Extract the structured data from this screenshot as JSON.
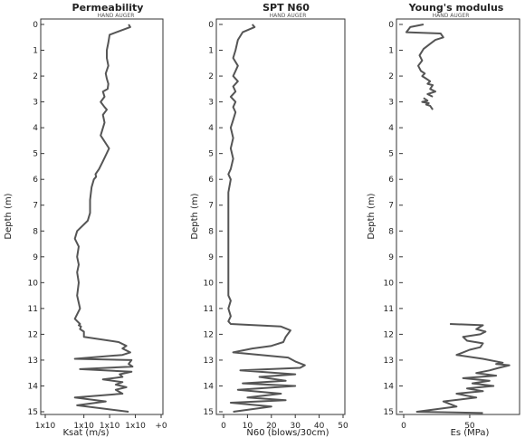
{
  "colors": {
    "trace": "#555555",
    "axis": "#333333"
  },
  "chart_data": [
    {
      "type": "line",
      "title": "Permeability",
      "annotation": "HAND AUGER",
      "xlabel": "Ksat (m/s)",
      "ylabel": "Depth (m)",
      "xscale": "log",
      "xlim": [
        1e-09,
        1
      ],
      "ylim": [
        15,
        0
      ],
      "x_ticks": [
        {
          "value": 1e-09,
          "label": "1x10"
        },
        {
          "value": 1e-06,
          "label": "1x10"
        },
        {
          "value": 0.0001,
          "label": "1x10"
        },
        {
          "value": 0.01,
          "label": "1x10"
        },
        {
          "value": 1,
          "label": "+0"
        }
      ],
      "y_ticks": [
        0,
        1,
        2,
        3,
        4,
        5,
        6,
        7,
        8,
        9,
        10,
        11,
        12,
        13,
        14,
        15
      ],
      "series": [
        {
          "x": [
            0.003,
            0.004,
            0.0001,
            8e-05,
            6e-05,
            6e-05,
            8e-05,
            5e-05,
            6e-05,
            8e-05,
            7e-05,
            3e-05,
            4e-05,
            2e-05,
            4e-05,
            6e-05,
            3e-05,
            4e-05,
            2e-05,
            9e-05,
            3e-05,
            1.5e-05,
            8e-06,
            9e-06,
            6e-06,
            4e-06,
            3e-06,
            3e-06,
            2e-06,
            3e-07,
            2e-07,
            4e-07,
            3e-07,
            4e-07,
            3e-07,
            4e-07,
            3e-07,
            5e-07,
            2e-07,
            5e-07,
            4e-07,
            6e-07,
            5e-07,
            1e-06,
            1e-06,
            0.0005,
            0.002,
            0.001,
            0.004,
            0.001,
            2e-07,
            0.005,
            0.003,
            0.006,
            5e-07,
            0.005,
            0.0006,
            0.001,
            3e-05,
            0.001,
            0.0003,
            0.002,
            0.0003,
            0.001,
            2e-07,
            5e-05,
            3e-07,
            0.003
          ],
          "depth": [
            0,
            0.1,
            0.4,
            0.7,
            1.0,
            1.3,
            1.6,
            1.9,
            2.1,
            2.3,
            2.5,
            2.6,
            2.8,
            3.0,
            3.2,
            3.3,
            3.5,
            3.8,
            4.3,
            4.8,
            5.3,
            5.6,
            5.8,
            5.9,
            6.0,
            6.3,
            6.8,
            7.3,
            7.6,
            8.0,
            8.3,
            8.6,
            9.0,
            9.3,
            9.6,
            10.0,
            10.5,
            11.0,
            11.4,
            11.6,
            11.65,
            11.7,
            11.8,
            11.9,
            12.1,
            12.3,
            12.45,
            12.55,
            12.7,
            12.8,
            12.95,
            13.0,
            13.15,
            13.25,
            13.35,
            13.45,
            13.55,
            13.65,
            13.75,
            13.85,
            13.95,
            14.05,
            14.15,
            14.3,
            14.45,
            14.6,
            14.75,
            15.0
          ]
        }
      ]
    },
    {
      "type": "line",
      "title": "SPT N60",
      "annotation": "HAND AUGER",
      "xlabel": "N60 (blows/30cm)",
      "ylabel": "Depth (m)",
      "xlim": [
        0,
        50
      ],
      "ylim": [
        15,
        0
      ],
      "x_ticks": [
        0,
        10,
        20,
        30,
        40,
        50
      ],
      "y_ticks": [
        0,
        1,
        2,
        3,
        4,
        5,
        6,
        7,
        8,
        9,
        10,
        11,
        12,
        13,
        14,
        15
      ],
      "series": [
        {
          "x": [
            12,
            13,
            8,
            6,
            5,
            4,
            6,
            5,
            4,
            6,
            4,
            5,
            3,
            5,
            4,
            5,
            4,
            3,
            4,
            3,
            4,
            3,
            2,
            3,
            2,
            2,
            2,
            2,
            2,
            2,
            2,
            2,
            2,
            2,
            3,
            2,
            3,
            2,
            3,
            24,
            28,
            26,
            25,
            20,
            12,
            4,
            27,
            30,
            34,
            32,
            7,
            30,
            15,
            26,
            8,
            30,
            6,
            24,
            10,
            26,
            3,
            20,
            4
          ],
          "depth": [
            0,
            0.1,
            0.3,
            0.6,
            1.0,
            1.3,
            1.6,
            1.8,
            2.0,
            2.2,
            2.4,
            2.6,
            2.8,
            3.0,
            3.2,
            3.4,
            3.7,
            4.0,
            4.4,
            4.8,
            5.2,
            5.6,
            5.8,
            6.0,
            6.5,
            7.0,
            7.5,
            8.0,
            8.5,
            9.0,
            9.5,
            10.0,
            10.3,
            10.5,
            10.7,
            11.0,
            11.3,
            11.5,
            11.6,
            11.7,
            11.85,
            12.1,
            12.3,
            12.45,
            12.55,
            12.7,
            12.9,
            13.05,
            13.2,
            13.3,
            13.4,
            13.55,
            13.65,
            13.8,
            13.9,
            14.0,
            14.15,
            14.3,
            14.45,
            14.55,
            14.65,
            14.8,
            15.0
          ]
        }
      ]
    },
    {
      "type": "line",
      "title": "Young's modulus",
      "annotation": "HAND AUGER",
      "xlabel": "Es (MPa)",
      "ylabel": "Depth (m)",
      "xlim": [
        0,
        85
      ],
      "ylim": [
        15,
        0
      ],
      "x_ticks": [
        0,
        50
      ],
      "y_ticks": [
        0,
        1,
        2,
        3,
        4,
        5,
        6,
        7,
        8,
        9,
        10,
        11,
        12,
        13,
        14,
        15
      ],
      "series": [
        {
          "x": [
            15,
            5,
            2,
            28,
            30,
            24,
            20,
            15,
            12,
            14,
            11,
            13,
            16,
            14,
            17,
            20,
            18,
            22,
            20,
            24,
            18,
            22
          ],
          "depth": [
            0,
            0.1,
            0.3,
            0.35,
            0.5,
            0.6,
            0.75,
            0.95,
            1.2,
            1.4,
            1.6,
            1.8,
            1.9,
            2.0,
            2.1,
            2.2,
            2.3,
            2.35,
            2.5,
            2.6,
            2.7,
            2.8
          ]
        },
        {
          "x": [
            15,
            18,
            14,
            19,
            17,
            20,
            22
          ],
          "depth": [
            2.85,
            2.95,
            3.0,
            3.05,
            3.1,
            3.15,
            3.3
          ]
        },
        {
          "x": [
            35,
            60,
            55,
            62,
            58,
            45,
            48,
            60,
            58,
            50,
            45,
            40,
            60,
            75,
            70,
            80,
            72,
            65,
            55,
            70,
            45,
            65,
            52,
            68,
            48,
            60,
            40,
            55,
            30,
            40,
            10,
            60
          ],
          "depth": [
            11.6,
            11.65,
            11.8,
            11.9,
            12.0,
            12.1,
            12.25,
            12.35,
            12.5,
            12.6,
            12.7,
            12.8,
            12.95,
            13.1,
            13.15,
            13.2,
            13.3,
            13.4,
            13.5,
            13.6,
            13.7,
            13.8,
            13.9,
            14.0,
            14.1,
            14.2,
            14.3,
            14.45,
            14.6,
            14.8,
            15.0,
            15.05
          ]
        }
      ]
    }
  ]
}
